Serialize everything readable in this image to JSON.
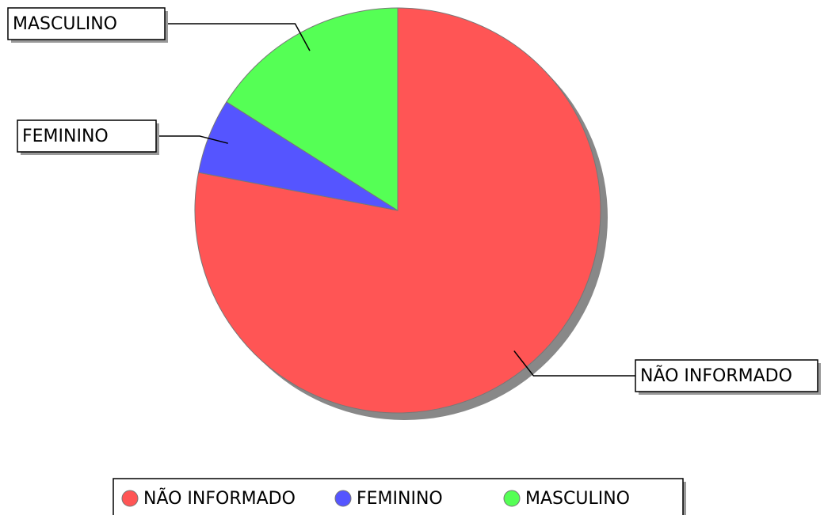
{
  "chart_data": {
    "type": "pie",
    "categories": [
      "NÃO INFORMADO",
      "FEMININO",
      "MASCULINO"
    ],
    "values": [
      78,
      6,
      16
    ],
    "colors": [
      "#ff5555",
      "#5555ff",
      "#55ff55"
    ],
    "legend": "bottom"
  }
}
